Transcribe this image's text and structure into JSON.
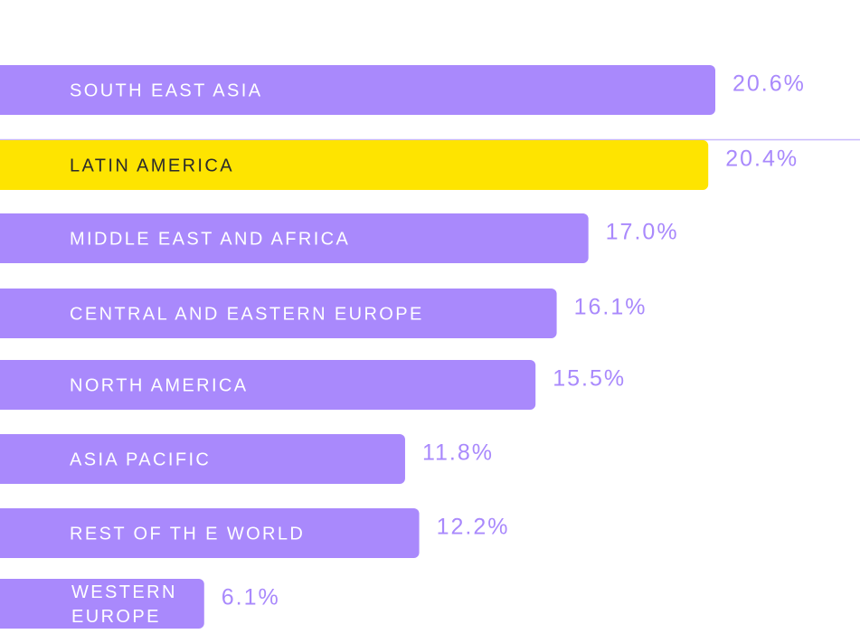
{
  "chart_data": {
    "type": "bar",
    "orientation": "horizontal",
    "categories": [
      [
        "SOUTH EAST ASIA"
      ],
      [
        "LATIN AMERICA"
      ],
      [
        "MIDDLE EAST AND AFRICA"
      ],
      [
        "CENTRAL AND EASTERN EUROPE"
      ],
      [
        "NORTH AMERICA"
      ],
      [
        "ASIA PACIFIC"
      ],
      [
        "REST OF TH E  WORLD"
      ],
      [
        "WESTERN",
        "EUROPE"
      ]
    ],
    "values": [
      20.6,
      20.4,
      17.0,
      16.1,
      15.5,
      11.8,
      12.2,
      6.1
    ],
    "value_labels": [
      "20.6%",
      "20.4%",
      "17.0%",
      "16.1%",
      "15.5%",
      "11.8%",
      "12.2%",
      "6.1%"
    ],
    "highlight_index": 1,
    "xlim": [
      0,
      20.6
    ],
    "grid": false,
    "legend": "none"
  },
  "colors": {
    "bar": "#a989fc",
    "highlight": "#fee400",
    "bar_text": "#ffffff",
    "highlight_text": "#2b2b2b",
    "value_text": "#a989fc",
    "divider": "#c8b8fd"
  }
}
